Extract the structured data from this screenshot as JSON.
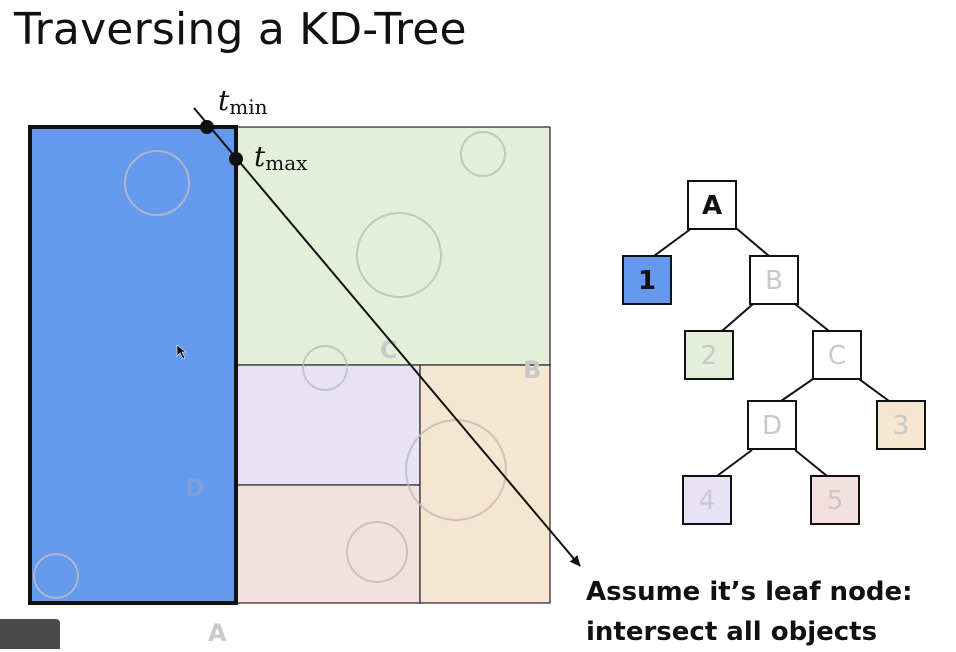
{
  "title": "Traversing a KD-Tree",
  "colors": {
    "region_1": "#6499ee",
    "region_2": "#e3efd8",
    "region_3": "#f6e5d1",
    "region_4": "#e7e2f6",
    "region_5": "#f3e0df",
    "grey_label": "#c9c9c9"
  },
  "ray": {
    "t_min_label": "t",
    "t_min_sub": "min",
    "t_max_label": "t",
    "t_max_sub": "max"
  },
  "partition_labels": {
    "A": "A",
    "B": "B",
    "C": "C",
    "D": "D"
  },
  "tree": {
    "nodes": {
      "A": "A",
      "B": "B",
      "C": "C",
      "D": "D",
      "leaf_1": "1",
      "leaf_2": "2",
      "leaf_3": "3",
      "leaf_4": "4",
      "leaf_5": "5"
    }
  },
  "callout": {
    "line1": "Assume it’s leaf node:",
    "line2": "intersect all objects"
  }
}
